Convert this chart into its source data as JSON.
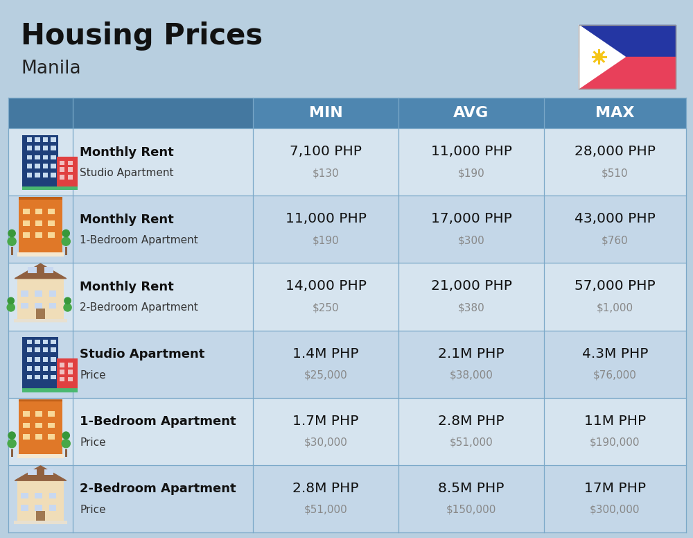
{
  "title": "Housing Prices",
  "subtitle": "Manila",
  "bg_color": "#b8cfe0",
  "header_bg": "#4e86b0",
  "header_text_color": "#ffffff",
  "row_bg_odd": "#d6e4ef",
  "row_bg_even": "#c4d7e8",
  "rows": [
    {
      "icon": "studio_blue",
      "label_bold": "Monthly Rent",
      "label_light": "Studio Apartment",
      "min_php": "7,100 PHP",
      "min_usd": "$130",
      "avg_php": "11,000 PHP",
      "avg_usd": "$190",
      "max_php": "28,000 PHP",
      "max_usd": "$510"
    },
    {
      "icon": "one_bed_orange",
      "label_bold": "Monthly Rent",
      "label_light": "1-Bedroom Apartment",
      "min_php": "11,000 PHP",
      "min_usd": "$190",
      "avg_php": "17,000 PHP",
      "avg_usd": "$300",
      "max_php": "43,000 PHP",
      "max_usd": "$760"
    },
    {
      "icon": "two_bed_beige",
      "label_bold": "Monthly Rent",
      "label_light": "2-Bedroom Apartment",
      "min_php": "14,000 PHP",
      "min_usd": "$250",
      "avg_php": "21,000 PHP",
      "avg_usd": "$380",
      "max_php": "57,000 PHP",
      "max_usd": "$1,000"
    },
    {
      "icon": "studio_blue",
      "label_bold": "Studio Apartment",
      "label_light": "Price",
      "min_php": "1.4M PHP",
      "min_usd": "$25,000",
      "avg_php": "2.1M PHP",
      "avg_usd": "$38,000",
      "max_php": "4.3M PHP",
      "max_usd": "$76,000"
    },
    {
      "icon": "one_bed_orange",
      "label_bold": "1-Bedroom Apartment",
      "label_light": "Price",
      "min_php": "1.7M PHP",
      "min_usd": "$30,000",
      "avg_php": "2.8M PHP",
      "avg_usd": "$51,000",
      "max_php": "11M PHP",
      "max_usd": "$190,000"
    },
    {
      "icon": "two_bed_beige2",
      "label_bold": "2-Bedroom Apartment",
      "label_light": "Price",
      "min_php": "2.8M PHP",
      "min_usd": "$51,000",
      "avg_php": "8.5M PHP",
      "avg_usd": "$150,000",
      "max_php": "17M PHP",
      "max_usd": "$300,000"
    }
  ]
}
